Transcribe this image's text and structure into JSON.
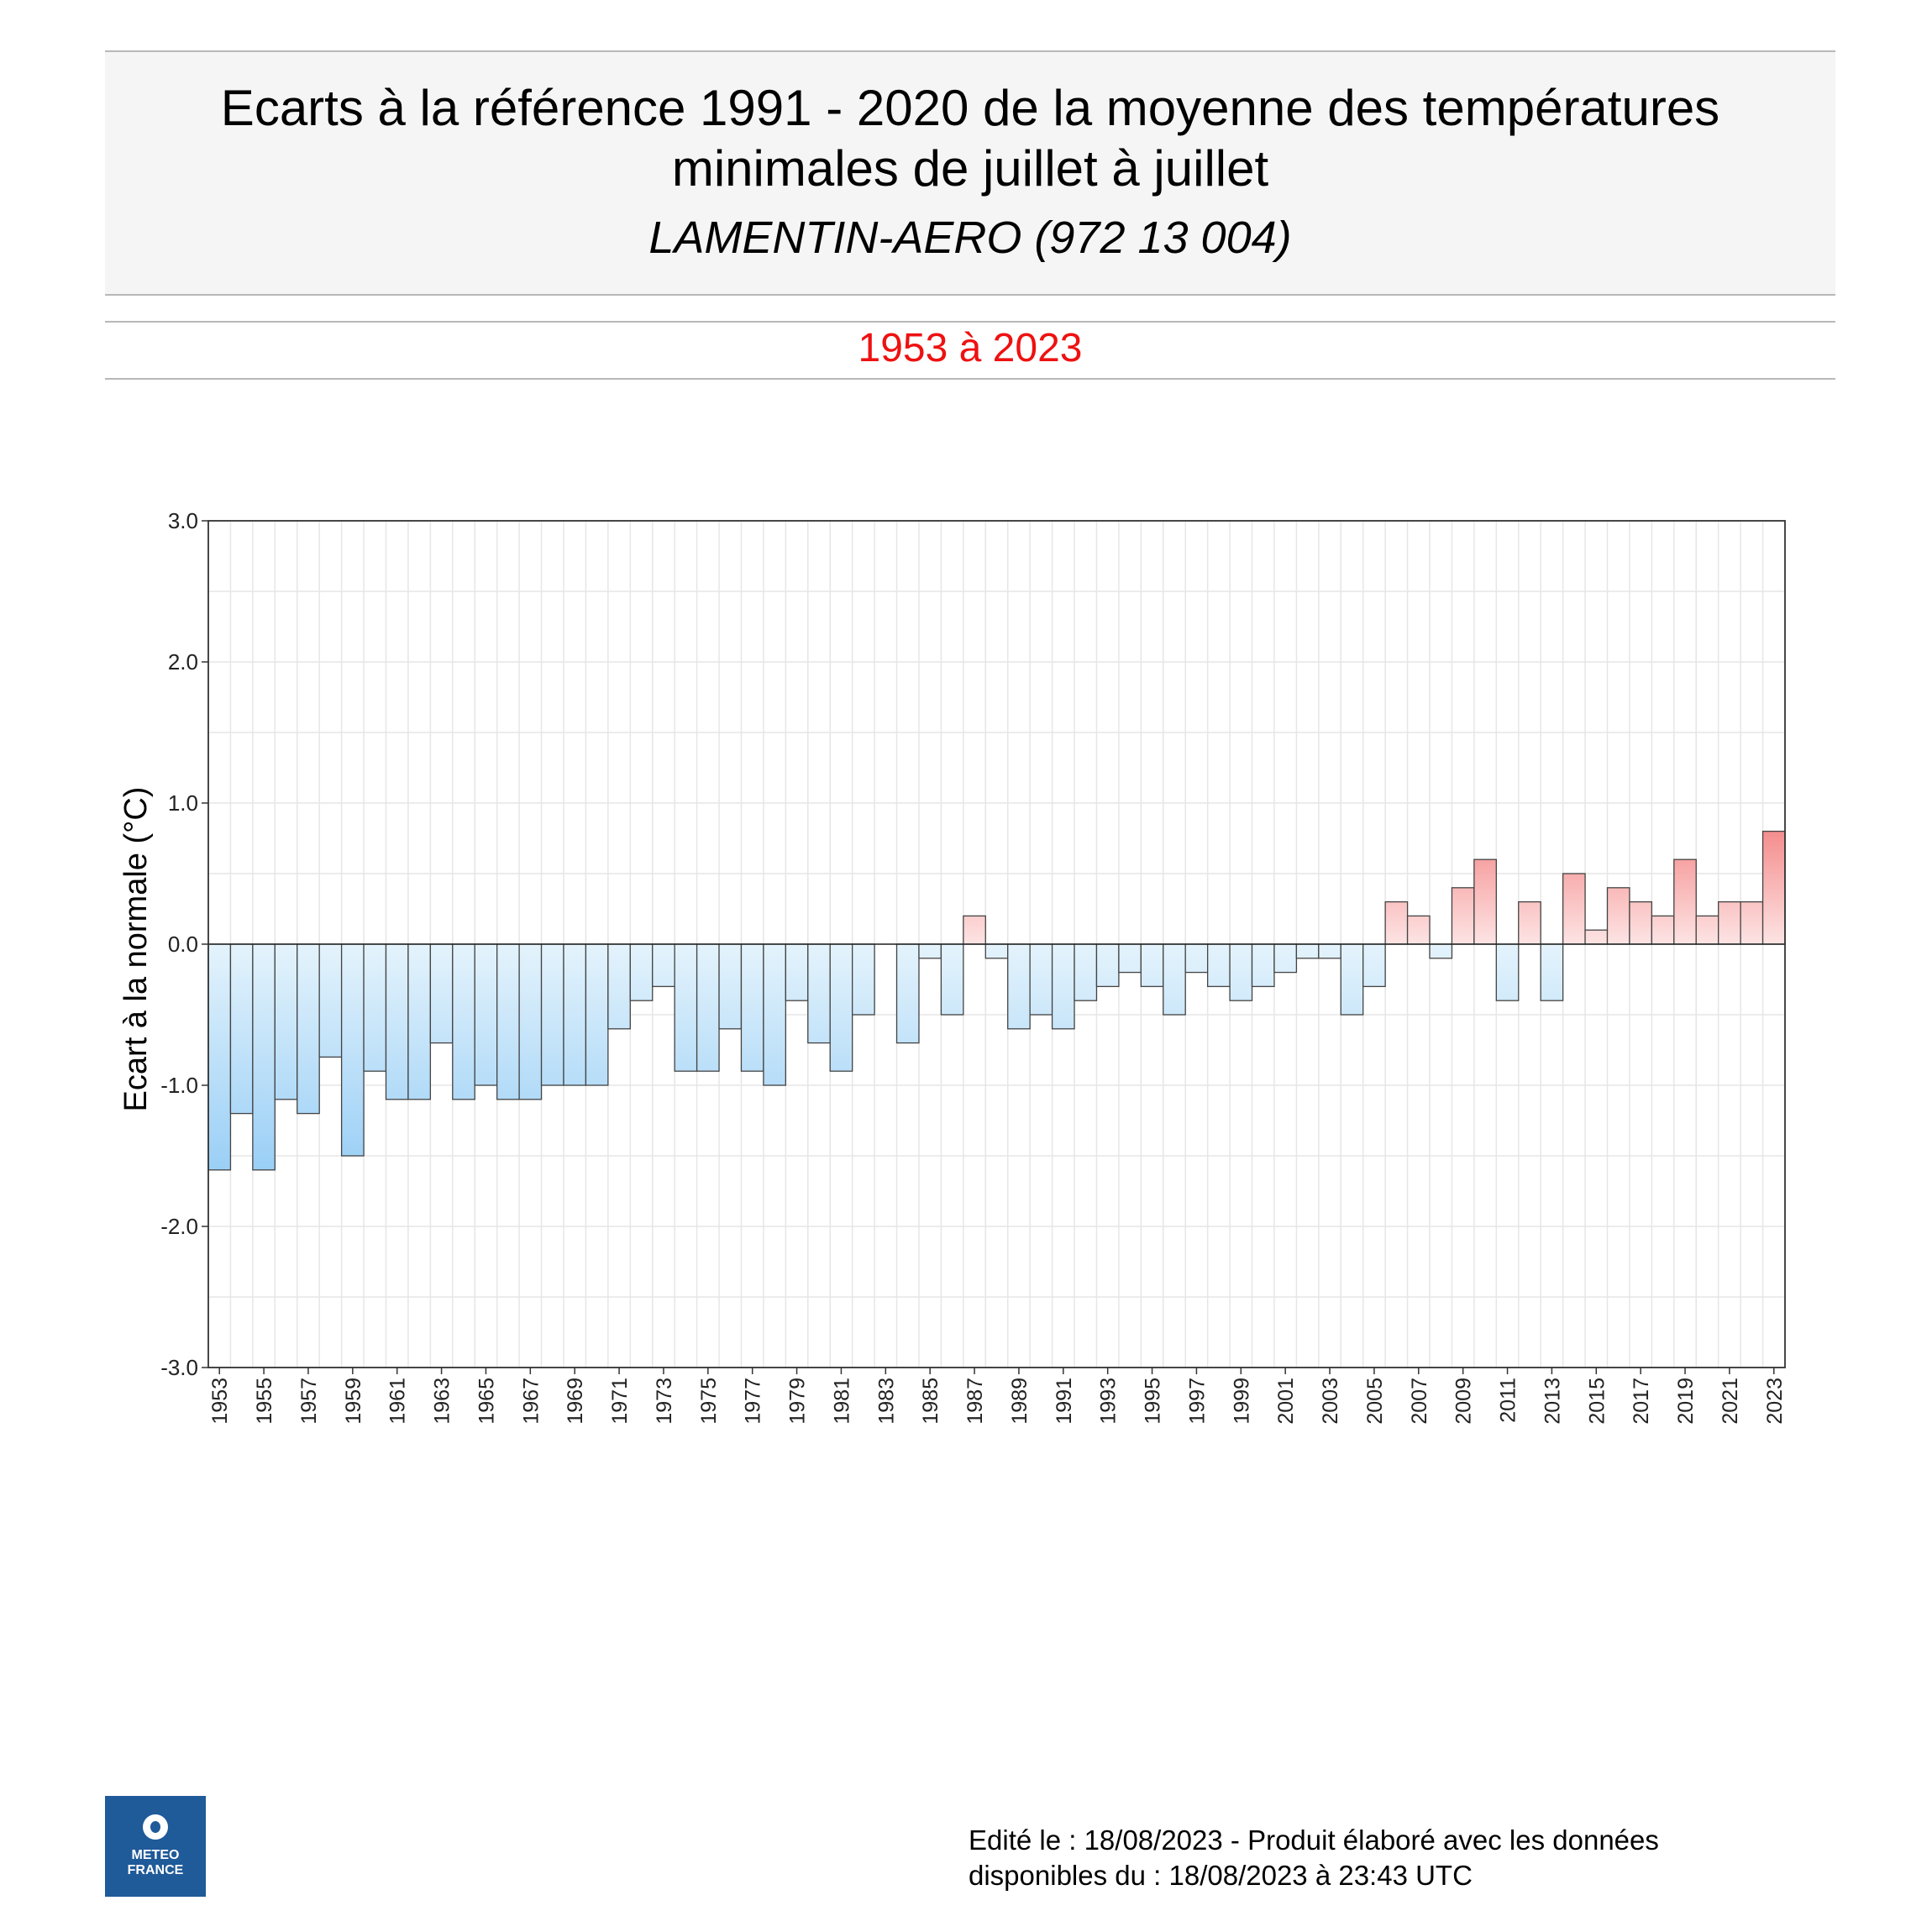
{
  "header": {
    "title_line1": "Ecarts à la référence 1991 - 2020 de la moyenne des températures",
    "title_line2": "minimales de juillet à juillet",
    "station": "LAMENTIN-AERO (972 13 004)"
  },
  "period": "1953 à 2023",
  "logo": {
    "line1": "METEO",
    "line2": "FRANCE"
  },
  "footer": {
    "line1": "Edité le : 18/08/2023 - Produit élaboré avec les données",
    "line2": "disponibles du : 18/08/2023 à 23:43 UTC"
  },
  "colors": {
    "negative_dark": "#6ab8f2",
    "negative_light": "#e4f3fc",
    "positive_dark": "#f58d8d",
    "positive_light": "#fde4e4"
  },
  "chart_data": {
    "type": "bar",
    "ylabel": "Ecart à la normale (°C)",
    "ylim": [
      -3.0,
      3.0
    ],
    "yticks": [
      "3.0",
      "2.0",
      "1.0",
      "0.0",
      "-1.0",
      "-2.0",
      "-3.0"
    ],
    "grid": true,
    "categories": [
      "1953",
      "1954",
      "1955",
      "1956",
      "1957",
      "1958",
      "1959",
      "1960",
      "1961",
      "1962",
      "1963",
      "1964",
      "1965",
      "1966",
      "1967",
      "1968",
      "1969",
      "1970",
      "1971",
      "1972",
      "1973",
      "1974",
      "1975",
      "1976",
      "1977",
      "1978",
      "1979",
      "1980",
      "1981",
      "1982",
      "1983",
      "1984",
      "1985",
      "1986",
      "1987",
      "1988",
      "1989",
      "1990",
      "1991",
      "1992",
      "1993",
      "1994",
      "1995",
      "1996",
      "1997",
      "1998",
      "1999",
      "2000",
      "2001",
      "2002",
      "2003",
      "2004",
      "2005",
      "2006",
      "2007",
      "2008",
      "2009",
      "2010",
      "2011",
      "2012",
      "2013",
      "2014",
      "2015",
      "2016",
      "2017",
      "2018",
      "2019",
      "2020",
      "2021",
      "2022",
      "2023"
    ],
    "xtick_labels": [
      "1953",
      "1955",
      "1957",
      "1959",
      "1961",
      "1963",
      "1965",
      "1967",
      "1969",
      "1971",
      "1973",
      "1975",
      "1977",
      "1979",
      "1981",
      "1983",
      "1985",
      "1987",
      "1989",
      "1991",
      "1993",
      "1995",
      "1997",
      "1999",
      "2001",
      "2003",
      "2005",
      "2007",
      "2009",
      "2011",
      "2013",
      "2015",
      "2017",
      "2019",
      "2021",
      "2023"
    ],
    "values": [
      -1.6,
      -1.2,
      -1.6,
      -1.1,
      -1.2,
      -0.8,
      -1.5,
      -0.9,
      -1.1,
      -1.1,
      -0.7,
      -1.1,
      -1.0,
      -1.1,
      -1.1,
      -1.0,
      -1.0,
      -1.0,
      -0.6,
      -0.4,
      -0.3,
      -0.9,
      -0.9,
      -0.6,
      -0.9,
      -1.0,
      -0.4,
      -0.7,
      -0.9,
      -0.5,
      null,
      -0.7,
      -0.1,
      -0.5,
      0.2,
      -0.1,
      -0.6,
      -0.5,
      -0.6,
      -0.4,
      -0.3,
      -0.2,
      -0.3,
      -0.5,
      -0.2,
      -0.3,
      -0.4,
      -0.3,
      -0.2,
      -0.1,
      -0.1,
      -0.5,
      -0.3,
      0.3,
      0.2,
      -0.1,
      0.4,
      0.6,
      -0.4,
      0.3,
      -0.4,
      0.5,
      0.1,
      0.4,
      0.3,
      0.2,
      0.6,
      0.2,
      0.3,
      0.3,
      0.8
    ]
  }
}
